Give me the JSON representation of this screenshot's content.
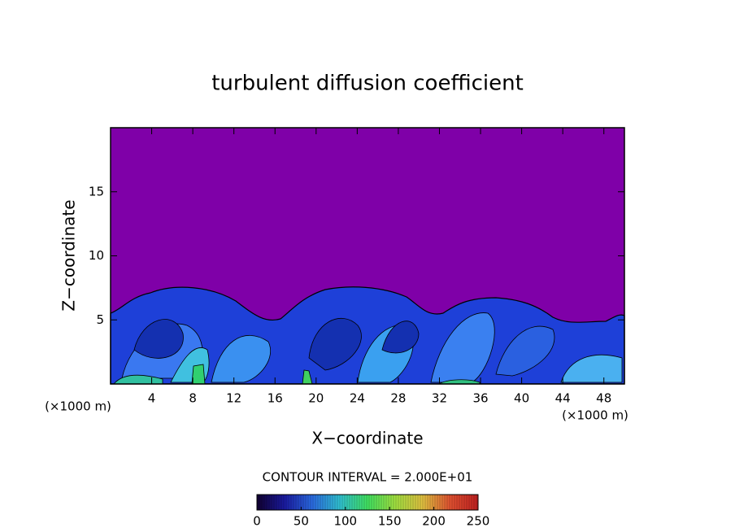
{
  "chart_data": {
    "type": "contour",
    "title": "turbulent diffusion coefficient",
    "xlabel": "X−coordinate",
    "ylabel": "Z−coordinate",
    "x_unit_label": "(×1000 m)",
    "y_unit_label": "(×1000 m)",
    "xlim": [
      0,
      50
    ],
    "ylim": [
      0,
      20
    ],
    "xticks": [
      4,
      8,
      12,
      16,
      20,
      24,
      28,
      32,
      36,
      40,
      44,
      48
    ],
    "yticks": [
      5,
      10,
      15
    ],
    "background_color": "#7f00a8",
    "contour_interval_label": "CONTOUR INTERVAL = 2.000E+01",
    "colorbar": {
      "lim": [
        0,
        250
      ],
      "ticks": [
        0,
        50,
        100,
        150,
        200,
        250
      ],
      "colors": [
        "#100030",
        "#1a1aa0",
        "#2a6ae0",
        "#30c0d0",
        "#40e060",
        "#a0e040",
        "#e0c040",
        "#e05030",
        "#c02020"
      ]
    }
  }
}
